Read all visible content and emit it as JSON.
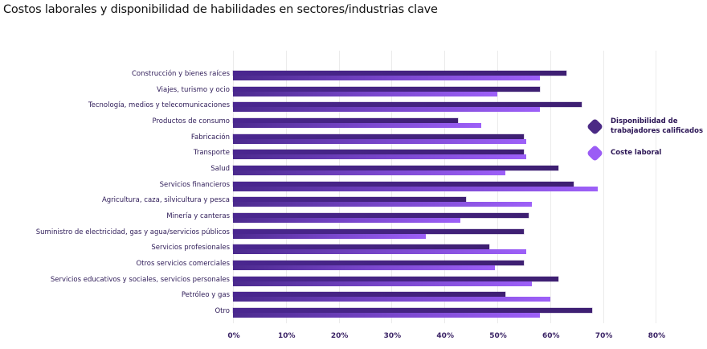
{
  "title": "Costos laborales y disponibilidad de habilidades en sectores/industrias clave",
  "colors": {
    "series_dark": "#42207a",
    "series_light": "#9d5ff7",
    "text": "#2d1a57",
    "grid": "#ebebeb"
  },
  "legend": [
    {
      "label": "Disponibilidad de trabajadores calificados",
      "icon": "dark-purple-diamond-icon",
      "color": "#4b2a85"
    },
    {
      "label": "Coste laboral",
      "icon": "light-purple-diamond-icon",
      "color": "#9b5cf5"
    }
  ],
  "x_ticks": [
    "0%",
    "10%",
    "20%",
    "30%",
    "40%",
    "50%",
    "60%",
    "70%",
    "80%"
  ],
  "chart_data": {
    "type": "bar",
    "orientation": "horizontal",
    "title": "Costos laborales y disponibilidad de habilidades en sectores/industrias clave",
    "xlabel": "",
    "ylabel": "",
    "xlim": [
      0,
      80
    ],
    "x_tick_labels": [
      "0%",
      "10%",
      "20%",
      "30%",
      "40%",
      "50%",
      "60%",
      "70%",
      "80%"
    ],
    "grid": "vertical",
    "legend_position": "right",
    "categories": [
      "Construcción y bienes raíces",
      "Viajes, turismo y ocio",
      "Tecnología, medios y telecomunicaciones",
      "Productos de consumo",
      "Fabricación",
      "Transporte",
      "Salud",
      "Servicios financieros",
      "Agricultura, caza, silvicultura y pesca",
      "Minería y canteras",
      "Suministro de electricidad, gas y agua/servicios públicos",
      "Servicios profesionales",
      "Otros servicios comerciales",
      "Servicios educativos y sociales, servicios personales",
      "Petróleo y gas",
      "Otro"
    ],
    "series": [
      {
        "name": "Disponibilidad de trabajadores calificados",
        "values": [
          63,
          58,
          66,
          42.5,
          55,
          55,
          61.5,
          64.5,
          44,
          56,
          55,
          48.5,
          55,
          61.5,
          51.5,
          68
        ]
      },
      {
        "name": "Coste laboral",
        "values": [
          58,
          50,
          58,
          47,
          55.5,
          55.5,
          51.5,
          69,
          56.5,
          43,
          36.5,
          55.5,
          49.5,
          56.5,
          60,
          58
        ]
      }
    ]
  }
}
